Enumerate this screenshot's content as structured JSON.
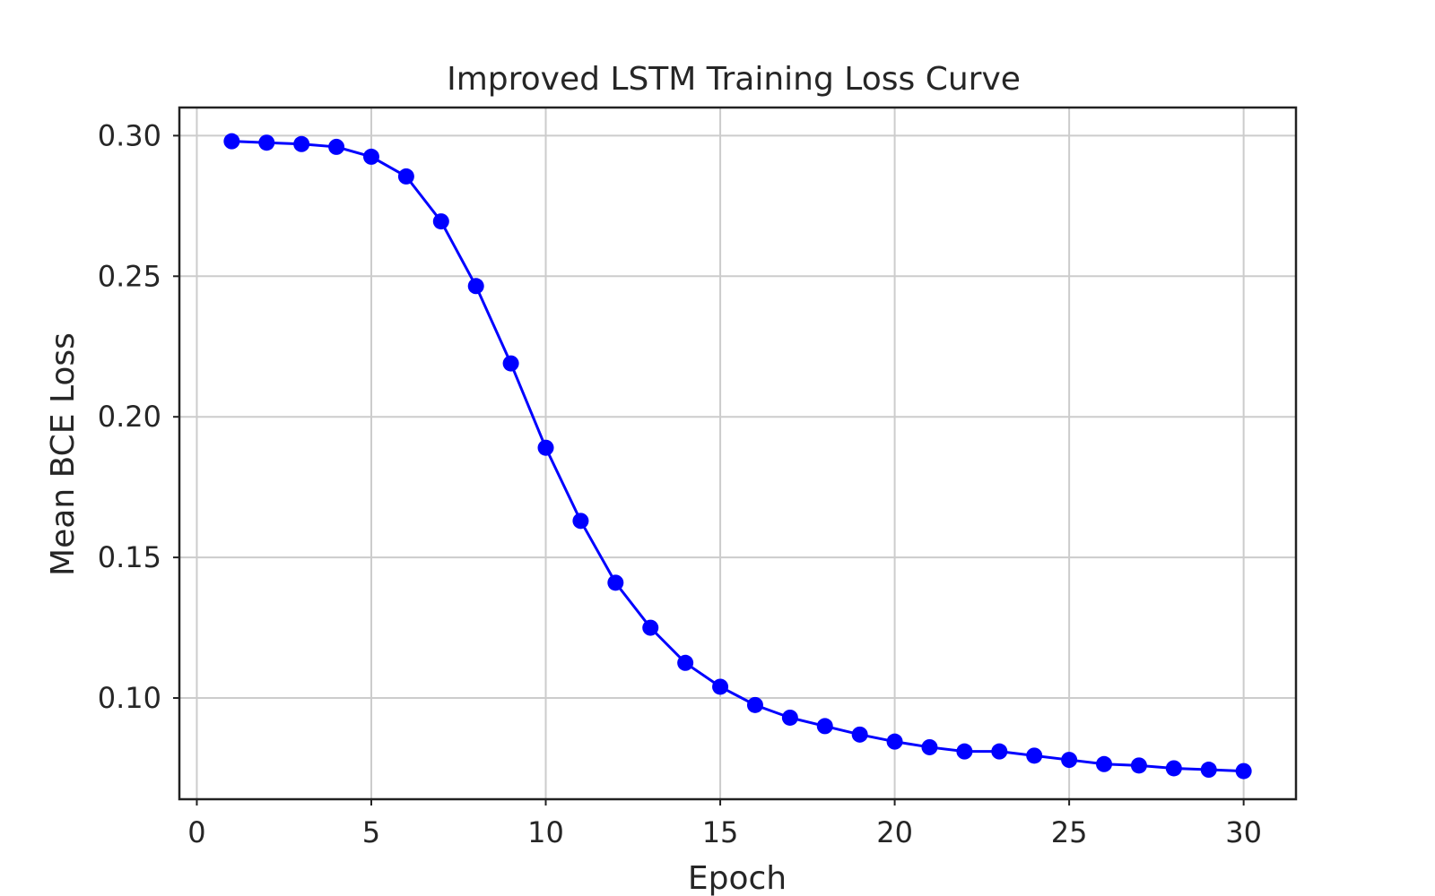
{
  "chart_data": {
    "type": "line",
    "title": "Improved LSTM Training Loss Curve",
    "xlabel": "Epoch",
    "ylabel": "Mean BCE Loss",
    "xlim": [
      -0.5,
      31.5
    ],
    "ylim": [
      0.064,
      0.31
    ],
    "xticks": [
      0,
      5,
      10,
      15,
      20,
      25,
      30
    ],
    "yticks": [
      0.1,
      0.15,
      0.2,
      0.25,
      0.3
    ],
    "ytick_labels": [
      "0.10",
      "0.15",
      "0.20",
      "0.25",
      "0.30"
    ],
    "grid": true,
    "series": [
      {
        "color": "#0000ff",
        "marker": "circle",
        "x": [
          1,
          2,
          3,
          4,
          5,
          6,
          7,
          8,
          9,
          10,
          11,
          12,
          13,
          14,
          15,
          16,
          17,
          18,
          19,
          20,
          21,
          22,
          23,
          24,
          25,
          26,
          27,
          28,
          29,
          30
        ],
        "y": [
          0.298,
          0.2975,
          0.297,
          0.296,
          0.2925,
          0.2855,
          0.2695,
          0.2465,
          0.219,
          0.189,
          0.163,
          0.141,
          0.125,
          0.1125,
          0.104,
          0.0975,
          0.093,
          0.09,
          0.087,
          0.0845,
          0.0825,
          0.081,
          0.081,
          0.0795,
          0.078,
          0.0765,
          0.076,
          0.075,
          0.0745,
          0.074
        ]
      }
    ]
  }
}
